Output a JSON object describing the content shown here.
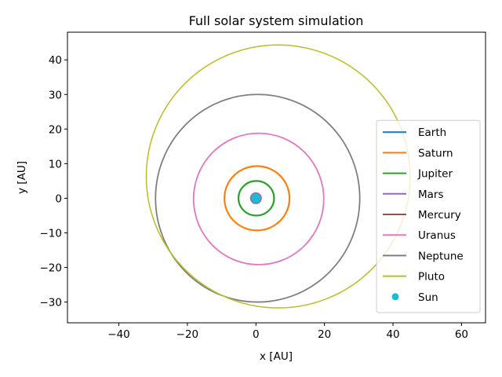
{
  "chart_data": {
    "type": "line",
    "title": "Full solar system simulation",
    "xlabel": "x [AU]",
    "ylabel": "y [AU]",
    "xlim": [
      -55,
      67
    ],
    "ylim": [
      -36,
      48
    ],
    "xticks": [
      -40,
      -20,
      0,
      20,
      40,
      60
    ],
    "yticks": [
      -30,
      -20,
      -10,
      0,
      10,
      20,
      30,
      40
    ],
    "grid": false,
    "legend_position": "lower-right",
    "series": [
      {
        "name": "Earth",
        "kind": "orbit",
        "color": "#1f77b4",
        "center": [
          0,
          0
        ],
        "rx": 1.0,
        "ry": 1.0,
        "linewidth": 1.5
      },
      {
        "name": "Saturn",
        "kind": "orbit",
        "color": "#ff7f0e",
        "center": [
          0.3,
          0
        ],
        "rx": 9.5,
        "ry": 9.3,
        "linewidth": 2.2
      },
      {
        "name": "Jupiter",
        "kind": "orbit",
        "color": "#2ca02c",
        "center": [
          0.1,
          0
        ],
        "rx": 5.2,
        "ry": 5.0,
        "linewidth": 2.2
      },
      {
        "name": "Mars",
        "kind": "orbit",
        "color": "#9467bd",
        "center": [
          0,
          0
        ],
        "rx": 1.52,
        "ry": 1.5,
        "linewidth": 1.8
      },
      {
        "name": "Mercury",
        "kind": "orbit",
        "color": "#8c564b",
        "center": [
          0,
          0
        ],
        "rx": 0.39,
        "ry": 0.38,
        "linewidth": 1.5
      },
      {
        "name": "Uranus",
        "kind": "orbit",
        "color": "#e377c2",
        "center": [
          0.8,
          -0.2
        ],
        "rx": 19.0,
        "ry": 19.0,
        "linewidth": 1.8
      },
      {
        "name": "Neptune",
        "kind": "orbit",
        "color": "#7f7f7f",
        "center": [
          0.5,
          0
        ],
        "rx": 29.8,
        "ry": 30.0,
        "linewidth": 1.8
      },
      {
        "name": "Pluto",
        "kind": "orbit",
        "color": "#bcbd22",
        "center": [
          6.5,
          6.3
        ],
        "rx": 38.5,
        "ry": 38.0,
        "linewidth": 1.5
      },
      {
        "name": "Sun",
        "kind": "point",
        "color": "#17becf",
        "x": 0,
        "y": 0
      }
    ]
  }
}
